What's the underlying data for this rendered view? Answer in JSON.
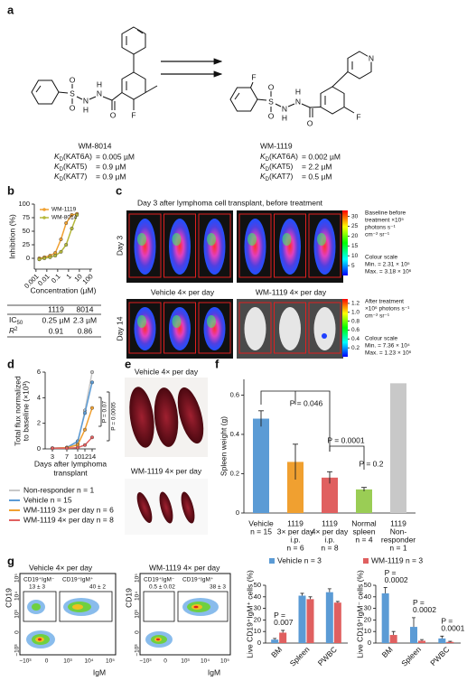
{
  "a": {
    "label": "a",
    "compounds": [
      {
        "name": "WM-8014",
        "atoms": [
          "O",
          "S",
          "O",
          "N",
          "H",
          "H",
          "N",
          "O",
          "F"
        ],
        "kd": [
          {
            "symbol": "K",
            "sub": "D",
            "target": "(KAT6A)",
            "value": "= 0.005 µM"
          },
          {
            "symbol": "K",
            "sub": "D",
            "target": "(KAT5)",
            "value": "= 0.9 µM"
          },
          {
            "symbol": "K",
            "sub": "D",
            "target": "(KAT7)",
            "value": "= 0.9 µM"
          }
        ]
      },
      {
        "name": "WM-1119",
        "atoms": [
          "F",
          "O",
          "S",
          "O",
          "N",
          "H",
          "H",
          "N",
          "O",
          "N",
          "F"
        ],
        "kd": [
          {
            "symbol": "K",
            "sub": "D",
            "target": "(KAT6A)",
            "value": "= 0.002 µM"
          },
          {
            "symbol": "K",
            "sub": "D",
            "target": "(KAT5)",
            "value": "= 2.2 µM"
          },
          {
            "symbol": "K",
            "sub": "D",
            "target": "(KAT7)",
            "value": "= 0.5 µM"
          }
        ]
      }
    ]
  },
  "b": {
    "label": "b",
    "chart": {
      "type": "line",
      "xlog": true,
      "xlabel": "Concentration (µM)",
      "ylabel": "Inhibition (%)",
      "x": [
        0.002,
        0.006,
        0.02,
        0.06,
        0.2,
        0.6,
        2,
        6
      ],
      "xlim": [
        0.0007,
        150
      ],
      "xticks": [
        0.001,
        0.01,
        0.1,
        1,
        10,
        100
      ],
      "ylim": [
        -20,
        100
      ],
      "yticks": [
        0,
        25,
        50,
        75,
        100
      ],
      "series": [
        {
          "name": "WM-1119",
          "color": "#f0a030",
          "values": [
            0,
            2,
            5,
            10,
            35,
            65,
            80,
            82
          ]
        },
        {
          "name": "WM-8014",
          "color": "#b5b83a",
          "values": [
            -2,
            0,
            2,
            5,
            12,
            25,
            55,
            80
          ]
        }
      ]
    },
    "table": {
      "header": [
        "1119",
        "8014"
      ],
      "rows": [
        {
          "label": "IC",
          "sub": "50",
          "cells": [
            "0.25 µM",
            "2.3 µM"
          ]
        },
        {
          "label": "R",
          "sup": "2",
          "cells": [
            "0.91",
            "0.86"
          ]
        }
      ]
    }
  },
  "c": {
    "label": "c",
    "title": "Day 3 after lymphoma cell transplant, before treatment",
    "rows": [
      "Day 3",
      "Day 14"
    ],
    "groups": [
      "Vehicle 4× per day",
      "WM-1119 4× per day"
    ],
    "scales": [
      {
        "ticks": [
          5,
          10,
          15,
          20,
          25,
          30
        ],
        "lim": [
          0,
          33
        ],
        "unit_lines": [
          "Baseline before",
          "treatment ×10⁵",
          "photons s⁻¹",
          "cm⁻² sr⁻¹"
        ],
        "scale_lines": [
          "Colour scale",
          "Min. = 2.31 × 10⁵",
          "Max. = 3.18 × 10⁶"
        ]
      },
      {
        "ticks": [
          0.2,
          0.4,
          0.6,
          0.8,
          {
            "value": 1,
            "label": "1.0"
          },
          1.2
        ],
        "lim": [
          0,
          1.3
        ],
        "unit_lines": [
          "After treatment",
          "×10⁶ photons s⁻¹",
          "cm⁻² sr⁻¹"
        ],
        "scale_lines": [
          "Colour scale",
          "Min. = 7.36 × 10⁴",
          "Max. = 1.23 × 10⁶"
        ]
      }
    ]
  },
  "d": {
    "label": "d",
    "chart": {
      "type": "line",
      "ylabel": [
        "Total flux normalized",
        "to baseline (×10³)"
      ],
      "xlabel": [
        "Days after lymphoma",
        "transplant"
      ],
      "x": [
        3,
        7,
        10,
        12,
        14
      ],
      "xlim": [
        1,
        15
      ],
      "xticks": [
        3,
        7,
        10,
        12,
        14
      ],
      "ylim": [
        0,
        6
      ],
      "yticks": [
        0,
        2,
        4,
        6
      ],
      "series": [
        {
          "name": "Non-responder n = 1",
          "color": "#c8c8c8",
          "values": [
            0.05,
            0.1,
            0.4,
            3,
            6
          ]
        },
        {
          "name": "Vehicle n = 15",
          "color": "#5b9bd5",
          "values": [
            0.05,
            0.1,
            0.6,
            2.8,
            5.2
          ]
        },
        {
          "name": "WM-1119 3× per day n = 6",
          "color": "#f0a030",
          "values": [
            0.05,
            0.1,
            0.3,
            1.5,
            3.2
          ]
        },
        {
          "name": "WM-1119 4× per day n = 8",
          "color": "#e06060",
          "values": [
            0.05,
            0.05,
            0.1,
            0.3,
            0.9
          ]
        }
      ],
      "annotations": [
        "P = 0.07",
        "P = 0.0005"
      ]
    }
  },
  "e": {
    "label": "e",
    "groups": [
      "Vehicle 4× per day",
      "WM-1119 4× per day"
    ]
  },
  "f": {
    "label": "f",
    "chart": {
      "type": "bar",
      "ylabel": "Spleen weight (g)",
      "ylim": [
        0,
        0.68
      ],
      "yticks": [
        0,
        0.2,
        0.4,
        0.6
      ],
      "categories": [
        [
          "Vehicle",
          "n = 15"
        ],
        [
          "1119",
          "3× per day",
          "i.p.",
          "n = 6"
        ],
        [
          "1119",
          "4× per day",
          "i.p.",
          "n = 8"
        ],
        [
          "Normal",
          "spleen",
          "n = 4"
        ],
        [
          "1119",
          "Non-",
          "responder",
          "n = 1"
        ]
      ],
      "values": [
        0.48,
        0.26,
        0.18,
        0.12,
        0.66
      ],
      "errors": [
        0.04,
        0.09,
        0.03,
        0.01,
        null
      ],
      "colors": [
        "#5b9bd5",
        "#f0a030",
        "#e06060",
        "#9acd55",
        "#c8c8c8"
      ],
      "annotations": [
        "P = 0.046",
        "P = 0.0001",
        "P = 0.2"
      ]
    }
  },
  "g": {
    "label": "g",
    "flow": {
      "axis_x": "IgM",
      "axis_y": "CD19",
      "tick_labels": [
        "−10³",
        "0",
        "10³",
        "10⁴",
        "10⁵"
      ],
      "plots": [
        {
          "title": "Vehicle 4× per day",
          "gates": [
            {
              "name": "CD19⁺IgM⁻",
              "value": "13 ± 3"
            },
            {
              "name": "CD19⁺IgM⁺",
              "value": "40 ± 2"
            }
          ]
        },
        {
          "title": "WM-1119 4× per day",
          "gates": [
            {
              "name": "CD19⁺IgM⁻",
              "value": "0.5 ± 0.02"
            },
            {
              "name": "CD19⁺IgM⁺",
              "value": "38 ± 3"
            }
          ]
        }
      ]
    },
    "charts": [
      {
        "type": "bar",
        "ylabel": "Live CD19⁺IgM⁺ cells (%)",
        "categories": [
          "BM",
          "Spleen",
          "PWBC"
        ],
        "ylim": [
          0,
          50
        ],
        "yticks": [
          0,
          10,
          20,
          30,
          40,
          50
        ],
        "series": [
          {
            "name": "Vehicle n = 3",
            "color": "#5b9bd5",
            "values": [
              3,
              41,
              44
            ],
            "errors": [
              1,
              2,
              3
            ]
          },
          {
            "name": "WM-1119 n = 3",
            "color": "#e06060",
            "values": [
              9,
              38,
              35
            ],
            "errors": [
              2,
              2,
              1
            ]
          }
        ],
        "annotations": [
          [
            "P =",
            "0.007"
          ],
          null,
          null
        ]
      },
      {
        "type": "bar",
        "ylabel": "Live CD19⁺IgM⁻ cells (%)",
        "categories": [
          "BM",
          "Spleen",
          "PWBC"
        ],
        "ylim": [
          0,
          50
        ],
        "yticks": [
          0,
          10,
          20,
          30,
          40,
          50
        ],
        "series": [
          {
            "name": "Vehicle n = 3",
            "color": "#5b9bd5",
            "values": [
              43,
              14,
              4
            ],
            "errors": [
              5,
              8,
              2
            ]
          },
          {
            "name": "WM-1119 n = 3",
            "color": "#e06060",
            "values": [
              7,
              2,
              1
            ],
            "errors": [
              3,
              1,
              0.5
            ]
          }
        ],
        "annotations": [
          [
            "P =",
            "0.0002"
          ],
          [
            "P =",
            "0.0002"
          ],
          [
            "P =",
            "0.0001"
          ]
        ]
      }
    ]
  }
}
